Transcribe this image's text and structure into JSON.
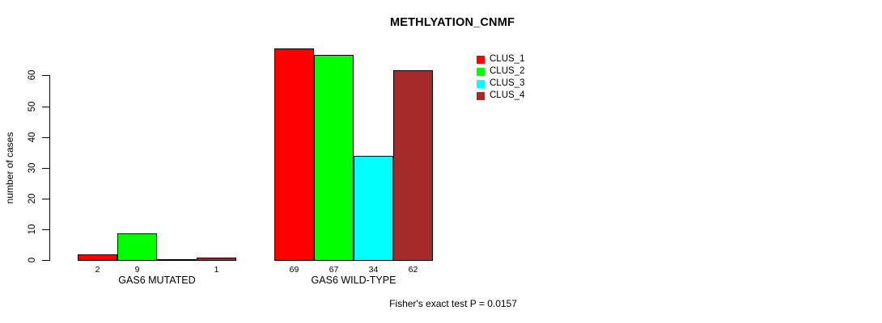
{
  "chart_data": {
    "type": "bar",
    "title": "METHLYATION_CNMF",
    "ylabel": "number of cases",
    "xlabel": "",
    "ylim": [
      0,
      60
    ],
    "yticks": [
      0,
      10,
      20,
      30,
      40,
      50,
      60
    ],
    "grid": false,
    "legend_position": "top-right-outside",
    "categories": [
      "GAS6 MUTATED",
      "GAS6 WILD-TYPE"
    ],
    "series": [
      {
        "name": "CLUS_1",
        "color": "#FF0000",
        "values": [
          2,
          69
        ]
      },
      {
        "name": "CLUS_2",
        "color": "#00FF00",
        "values": [
          9,
          67
        ]
      },
      {
        "name": "CLUS_3",
        "color": "#00FFFF",
        "values": [
          0,
          34
        ]
      },
      {
        "name": "CLUS_4",
        "color": "#A52A2A",
        "values": [
          1,
          62
        ]
      }
    ],
    "bar_value_labels": [
      [
        "2",
        "9",
        "",
        "1"
      ],
      [
        "69",
        "67",
        "34",
        "62"
      ]
    ],
    "annotation": "Fisher's exact test P = 0.0157"
  },
  "legend": {
    "items": [
      {
        "label": "CLUS_1",
        "color": "#FF0000"
      },
      {
        "label": "CLUS_2",
        "color": "#00FF00"
      },
      {
        "label": "CLUS_3",
        "color": "#00FFFF"
      },
      {
        "label": "CLUS_4",
        "color": "#A52A2A"
      }
    ]
  },
  "colors": {
    "axis": "#000000",
    "text": "#000000",
    "background": "#FFFFFF"
  }
}
